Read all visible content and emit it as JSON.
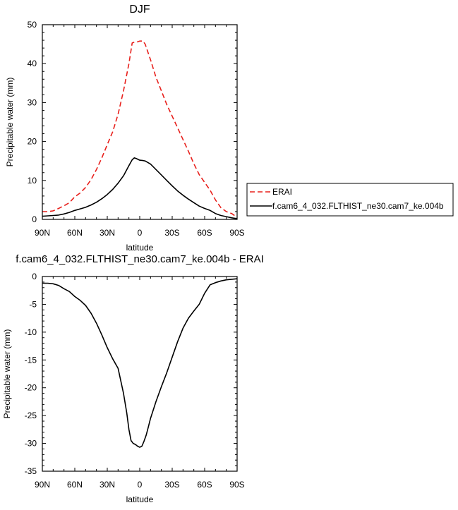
{
  "chart_data": [
    {
      "type": "line",
      "title": "DJF",
      "xlabel": "latitude",
      "ylabel": "Precipitable water (mm)",
      "xlim": [
        90,
        -90
      ],
      "ylim": [
        0,
        50
      ],
      "x_ticks": [
        90,
        60,
        30,
        0,
        -30,
        -60,
        -90
      ],
      "x_tick_labels": [
        "90N",
        "60N",
        "30N",
        "0",
        "30S",
        "60S",
        "90S"
      ],
      "y_ticks": [
        0,
        10,
        20,
        30,
        40,
        50
      ],
      "y_tick_labels": [
        "0",
        "10",
        "20",
        "30",
        "40",
        "50"
      ],
      "legend": "outside-right",
      "series": [
        {
          "name": "ERAI",
          "color": "#e8201c",
          "dash": "dashed",
          "x": [
            90,
            85,
            80,
            75,
            70,
            65,
            60,
            55,
            50,
            45,
            40,
            35,
            30,
            25,
            20,
            15,
            10,
            7,
            5,
            2,
            0,
            -3,
            -5,
            -10,
            -15,
            -20,
            -25,
            -30,
            -35,
            -40,
            -45,
            -50,
            -55,
            -60,
            -65,
            -70,
            -75,
            -80,
            -85,
            -90
          ],
          "y": [
            2,
            2,
            2.2,
            2.8,
            3.5,
            4.3,
            5.8,
            6.8,
            8.2,
            10.2,
            12.8,
            15.8,
            19.2,
            22.5,
            27,
            33,
            40,
            45.3,
            45.5,
            45.6,
            45.8,
            45.8,
            45,
            41,
            36.5,
            33,
            29.5,
            26.5,
            23.5,
            20.5,
            17.5,
            14.3,
            11.5,
            9.5,
            7.5,
            5,
            3,
            2,
            1.5,
            0.5
          ]
        },
        {
          "name": "f.cam6_4_032.FLTHIST_ne30.cam7_ke.004b",
          "color": "#000000",
          "dash": "solid",
          "x": [
            90,
            85,
            80,
            75,
            70,
            65,
            60,
            55,
            50,
            45,
            40,
            35,
            30,
            25,
            20,
            15,
            10,
            7,
            5,
            3,
            0,
            -3,
            -5,
            -10,
            -15,
            -20,
            -25,
            -30,
            -35,
            -40,
            -45,
            -50,
            -55,
            -60,
            -65,
            -70,
            -75,
            -80,
            -85,
            -90
          ],
          "y": [
            0.8,
            0.9,
            1,
            1.1,
            1.4,
            1.8,
            2.3,
            2.7,
            3.1,
            3.7,
            4.4,
            5.3,
            6.4,
            7.7,
            9.3,
            11.2,
            13.8,
            15.3,
            15.8,
            15.6,
            15.2,
            15.1,
            15,
            14.2,
            12.8,
            11.4,
            10,
            8.6,
            7.3,
            6.2,
            5.2,
            4.3,
            3.4,
            2.8,
            2.3,
            1.5,
            1,
            0.7,
            0.4,
            0.2
          ]
        }
      ]
    },
    {
      "type": "line",
      "title": "f.cam6_4_032.FLTHIST_ne30.cam7_ke.004b - ERAI",
      "xlabel": "latitude",
      "ylabel": "Precipitable water (mm)",
      "xlim": [
        90,
        -90
      ],
      "ylim": [
        -35,
        0
      ],
      "x_ticks": [
        90,
        60,
        30,
        0,
        -30,
        -60,
        -90
      ],
      "x_tick_labels": [
        "90N",
        "60N",
        "30N",
        "0",
        "30S",
        "60S",
        "90S"
      ],
      "y_ticks": [
        -35,
        -30,
        -25,
        -20,
        -15,
        -10,
        -5,
        0
      ],
      "y_tick_labels": [
        "-35",
        "-30",
        "-25",
        "-20",
        "-15",
        "-10",
        "-5",
        "0"
      ],
      "series": [
        {
          "color": "#000000",
          "dash": "solid",
          "x": [
            90,
            85,
            80,
            75,
            70,
            65,
            60,
            55,
            50,
            45,
            40,
            35,
            30,
            25,
            20,
            15,
            12,
            10,
            8,
            6,
            4,
            2,
            0,
            -2,
            -4,
            -6,
            -8,
            -10,
            -15,
            -20,
            -25,
            -30,
            -35,
            -40,
            -45,
            -50,
            -55,
            -60,
            -65,
            -70,
            -75,
            -80,
            -85,
            -90
          ],
          "y": [
            -1.2,
            -1.2,
            -1.3,
            -1.6,
            -2.2,
            -2.7,
            -3.6,
            -4.3,
            -5.2,
            -6.6,
            -8.4,
            -10.5,
            -12.8,
            -14.8,
            -16.5,
            -21,
            -24.5,
            -27.5,
            -29.5,
            -30,
            -30.2,
            -30.5,
            -30.7,
            -30.5,
            -29.6,
            -28.5,
            -27,
            -25.5,
            -22.5,
            -19.8,
            -17.3,
            -14.5,
            -11.7,
            -9.3,
            -7.5,
            -6.2,
            -5,
            -3,
            -1.5,
            -1.1,
            -0.8,
            -0.6,
            -0.5,
            -0.4
          ]
        }
      ]
    }
  ]
}
